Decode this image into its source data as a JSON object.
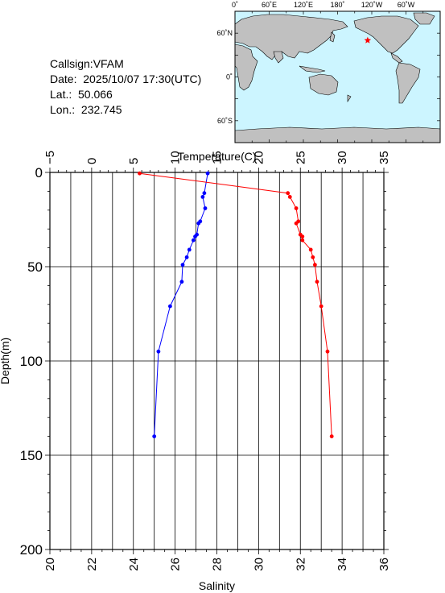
{
  "header": {
    "callsign": "Callsign:VFAM",
    "date": "Date:  2025/10/07 17:30(UTC)",
    "lat": "Lat.:  50.066",
    "lon": "Lon.:  232.745"
  },
  "map": {
    "top_labels": [
      "0˚",
      "60˚E",
      "120˚E",
      "180˚",
      "120˚W",
      "60˚W"
    ],
    "left_labels": [
      "60˚N",
      "0˚",
      "60˚S"
    ],
    "station": {
      "lat": 50.066,
      "lon": 232.745
    },
    "colors": {
      "ocean": "#ccf5ff",
      "land": "#c0c0c0",
      "marker": "#ff0000"
    }
  },
  "chart_data": {
    "type": "line",
    "top_axis_label": "Temperature(C)",
    "bottom_axis_label": "Salinity",
    "y_axis_label": "Depth(m)",
    "temperature_range": [
      -5,
      35
    ],
    "temperature_ticks": [
      "−5",
      "0",
      "5",
      "10",
      "15",
      "20",
      "25",
      "30",
      "35"
    ],
    "salinity_range": [
      20,
      36
    ],
    "salinity_ticks": [
      "20",
      "22",
      "24",
      "26",
      "28",
      "30",
      "32",
      "34",
      "36"
    ],
    "depth_range": [
      0,
      200
    ],
    "depth_ticks": [
      "0",
      "50",
      "100",
      "150",
      "200"
    ],
    "grid": true,
    "series": [
      {
        "variable": "temperature",
        "color": "#0000ff",
        "points": [
          [
            13.9,
            0.5
          ],
          [
            13.5,
            11
          ],
          [
            13.3,
            13
          ],
          [
            13.6,
            19
          ],
          [
            13.0,
            26
          ],
          [
            12.8,
            27
          ],
          [
            12.6,
            33
          ],
          [
            12.4,
            34
          ],
          [
            12.2,
            36
          ],
          [
            11.7,
            41
          ],
          [
            11.4,
            45
          ],
          [
            10.9,
            49
          ],
          [
            10.8,
            58
          ],
          [
            9.4,
            71
          ],
          [
            8.0,
            95
          ],
          [
            7.5,
            140
          ]
        ]
      },
      {
        "variable": "salinity",
        "color": "#ff0000",
        "points": [
          [
            24.3,
            0.5
          ],
          [
            31.4,
            11
          ],
          [
            31.5,
            13
          ],
          [
            31.8,
            19
          ],
          [
            31.9,
            26
          ],
          [
            31.8,
            27
          ],
          [
            32.0,
            33
          ],
          [
            32.1,
            34
          ],
          [
            32.1,
            36
          ],
          [
            32.5,
            41
          ],
          [
            32.6,
            45
          ],
          [
            32.7,
            49
          ],
          [
            32.8,
            58
          ],
          [
            33.0,
            71
          ],
          [
            33.3,
            95
          ],
          [
            33.5,
            140
          ]
        ]
      }
    ]
  }
}
